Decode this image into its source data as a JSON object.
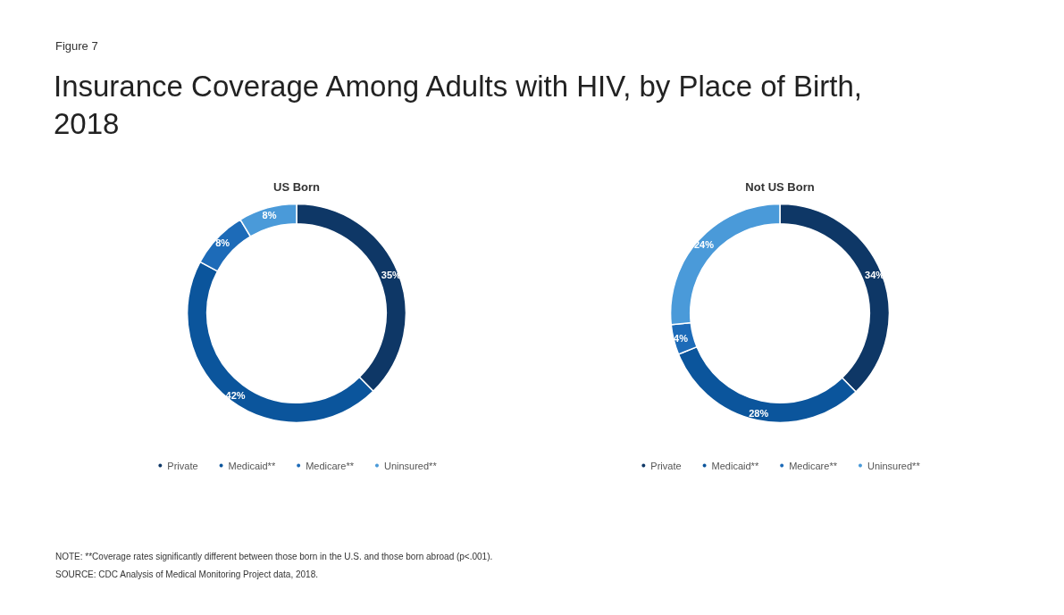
{
  "chart_data": [
    {
      "type": "donut",
      "title": "US Born",
      "annotations": [
        "Figure 7",
        "Insurance Coverage Among Adults with HIV, by Place of Birth, 2018"
      ],
      "categories": [
        "Private",
        "Medicaid**",
        "Medicare**",
        "Uninsured**"
      ],
      "values": [
        35,
        42,
        8,
        8
      ],
      "value_labels": [
        "35%",
        "42%",
        "8%",
        "8%"
      ],
      "colors": [
        "#0e3766",
        "#0b559c",
        "#1d6bb8",
        "#4a9ad9"
      ],
      "legend": "bottom"
    },
    {
      "type": "donut",
      "title": "Not US Born",
      "annotations": [
        "NOTE: **Coverage rates significantly different between those born in the U.S. and those born abroad (p<.001).",
        "SOURCE: CDC Analysis of Medical Monitoring Project data, 2018."
      ],
      "categories": [
        "Private",
        "Medicaid**",
        "Medicare**",
        "Uninsured**"
      ],
      "values": [
        34,
        28,
        4,
        24
      ],
      "value_labels": [
        "34%",
        "28%",
        "4%",
        "24%"
      ],
      "colors": [
        "#0e3766",
        "#0b559c",
        "#1d6bb8",
        "#4a9ad9"
      ],
      "legend": "bottom"
    }
  ]
}
